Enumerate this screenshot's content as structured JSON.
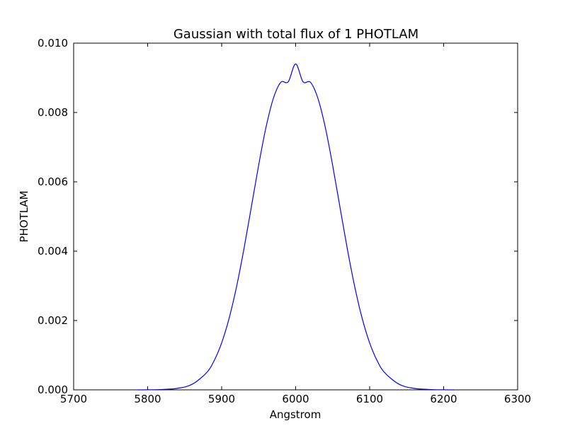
{
  "chart_data": {
    "type": "line",
    "title": "Gaussian with total flux of 1 PHOTLAM",
    "xlabel": "Angstrom",
    "ylabel": "PHOTLAM",
    "xlim": [
      5700,
      6300
    ],
    "ylim": [
      0.0,
      0.01
    ],
    "x_ticks": [
      "5700",
      "5800",
      "5900",
      "6000",
      "6100",
      "6200",
      "6300"
    ],
    "y_ticks": [
      "0.000",
      "0.002",
      "0.004",
      "0.006",
      "0.008",
      "0.010"
    ],
    "grid": false,
    "series": [
      {
        "color": "#0000ff",
        "x": [
          5786,
          5800,
          5820,
          5840,
          5860,
          5880,
          5890,
          5900,
          5910,
          5920,
          5930,
          5940,
          5950,
          5960,
          5970,
          5980,
          5990,
          6000,
          6010,
          6020,
          6030,
          6040,
          6050,
          6060,
          6070,
          6080,
          6090,
          6100,
          6110,
          6120,
          6140,
          6160,
          6180,
          6200,
          6214
        ],
        "y": [
          0.0,
          2e-06,
          1.1e-05,
          4.3e-05,
          0.000159,
          0.000503,
          0.000848,
          0.001354,
          0.002055,
          0.00296,
          0.004049,
          0.005257,
          0.006478,
          0.007578,
          0.008415,
          0.008872,
          0.008885,
          0.0094,
          0.008885,
          0.008872,
          0.008415,
          0.007578,
          0.006478,
          0.005257,
          0.004049,
          0.00296,
          0.002055,
          0.001354,
          0.000848,
          0.000503,
          0.000159,
          4.3e-05,
          1.1e-05,
          2e-06,
          0.0
        ]
      }
    ]
  }
}
